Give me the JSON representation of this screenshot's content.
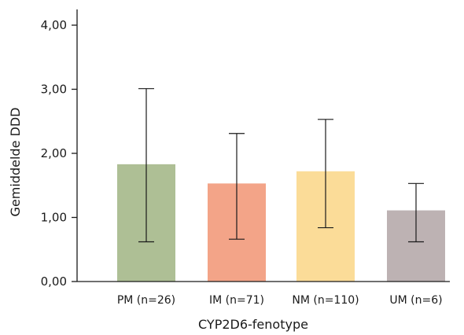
{
  "chart_data": {
    "type": "bar",
    "title": "",
    "xlabel": "CYP2D6-fenotype",
    "ylabel": "Gemiddelde DDD",
    "ylim": [
      0,
      4.5
    ],
    "yticks": [
      0,
      1,
      2,
      3,
      4
    ],
    "ytick_labels": [
      "0,00",
      "1,00",
      "2,00",
      "3,00",
      "4,00"
    ],
    "categories": [
      "PM (n=26)",
      "IM (n=71)",
      "NM (n=110)",
      "UM (n=6)"
    ],
    "values": [
      1.83,
      1.53,
      1.72,
      1.11
    ],
    "error_low": [
      0.62,
      0.66,
      0.84,
      0.62
    ],
    "error_high": [
      3.01,
      2.31,
      2.53,
      1.53
    ],
    "colors": [
      "#aebf95",
      "#f3a488",
      "#fbdc98",
      "#bdb2b3"
    ],
    "grid": false,
    "legend": "none"
  }
}
